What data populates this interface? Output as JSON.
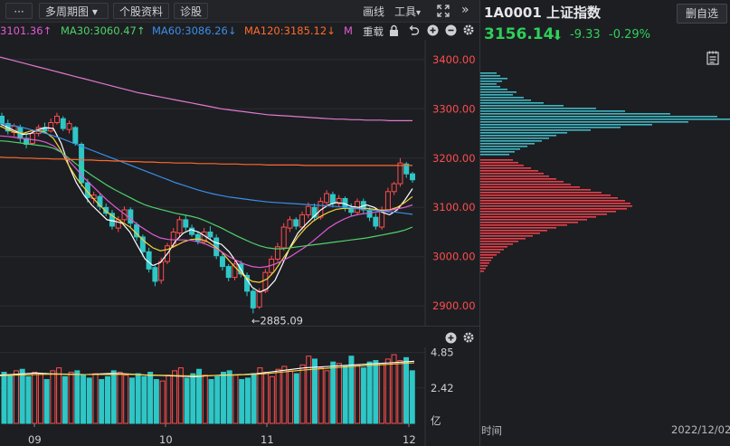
{
  "toolbar": {
    "multi_period": "多周期图",
    "stock_info": "个股资料",
    "diagnose": "诊股",
    "draw_line": "画线",
    "tools": "工具",
    "tools_caret": "▾",
    "multi_caret": "▾"
  },
  "ma_row": {
    "ma_first": "3101.36↑",
    "ma30": "MA30:3060.47↑",
    "ma60": "MA60:3086.26↓",
    "ma120": "MA120:3185.12↓",
    "ma_last": "M",
    "reweight": "重载",
    "colors": {
      "ma_first": "#e05bd3",
      "ma30": "#4ed36a",
      "ma60": "#3a8ee8",
      "ma120": "#ff6a2a",
      "ma_last": "#e05bd3"
    }
  },
  "chart_data": [
    {
      "type": "candlestick",
      "y_axis_labels": [
        "3400.00",
        "3300.00",
        "3200.00",
        "3100.00",
        "3000.00",
        "2900.00"
      ],
      "y_axis_values": [
        3400,
        3300,
        3200,
        3100,
        3000,
        2900
      ],
      "ylim": [
        2860,
        3440
      ],
      "annotation": "←2885.09",
      "annotation_value": 2885.09,
      "x_tick_labels": [
        "09",
        "10",
        "11",
        "12"
      ],
      "candles": [
        [
          3285,
          3270,
          3292,
          3262
        ],
        [
          3270,
          3255,
          3278,
          3248
        ],
        [
          3252,
          3265,
          3270,
          3244
        ],
        [
          3262,
          3240,
          3268,
          3232
        ],
        [
          3240,
          3228,
          3248,
          3220
        ],
        [
          3230,
          3250,
          3256,
          3226
        ],
        [
          3250,
          3262,
          3268,
          3244
        ],
        [
          3262,
          3255,
          3272,
          3250
        ],
        [
          3255,
          3272,
          3280,
          3252
        ],
        [
          3272,
          3285,
          3292,
          3268
        ],
        [
          3280,
          3260,
          3285,
          3255
        ],
        [
          3258,
          3270,
          3276,
          3250
        ],
        [
          3262,
          3230,
          3265,
          3225
        ],
        [
          3228,
          3150,
          3232,
          3142
        ],
        [
          3150,
          3120,
          3158,
          3110
        ],
        [
          3118,
          3125,
          3132,
          3108
        ],
        [
          3122,
          3102,
          3128,
          3095
        ],
        [
          3100,
          3088,
          3108,
          3082
        ],
        [
          3088,
          3062,
          3095,
          3055
        ],
        [
          3058,
          3075,
          3082,
          3050
        ],
        [
          3075,
          3095,
          3102,
          3070
        ],
        [
          3095,
          3068,
          3100,
          3060
        ],
        [
          3065,
          3040,
          3070,
          3032
        ],
        [
          3040,
          3010,
          3045,
          3000
        ],
        [
          3010,
          2975,
          3018,
          2968
        ],
        [
          2978,
          2950,
          2985,
          2940
        ],
        [
          2952,
          2990,
          2998,
          2945
        ],
        [
          2990,
          3022,
          3028,
          2985
        ],
        [
          3022,
          3050,
          3058,
          3018
        ],
        [
          3048,
          3075,
          3082,
          3040
        ],
        [
          3075,
          3060,
          3085,
          3052
        ],
        [
          3058,
          3045,
          3065,
          3040
        ],
        [
          3045,
          3032,
          3050,
          3025
        ],
        [
          3030,
          3050,
          3058,
          3025
        ],
        [
          3050,
          3040,
          3062,
          3035
        ],
        [
          3038,
          3002,
          3045,
          2995
        ],
        [
          3000,
          2980,
          3008,
          2972
        ],
        [
          2980,
          2958,
          2985,
          2950
        ],
        [
          2958,
          2985,
          2992,
          2952
        ],
        [
          2985,
          2965,
          2992,
          2958
        ],
        [
          2962,
          2930,
          2968,
          2920
        ],
        [
          2930,
          2896,
          2935,
          2885
        ],
        [
          2898,
          2930,
          2936,
          2894
        ],
        [
          2930,
          2968,
          2975,
          2926
        ],
        [
          2968,
          2995,
          3002,
          2962
        ],
        [
          2995,
          3020,
          3028,
          2990
        ],
        [
          3018,
          3060,
          3068,
          3012
        ],
        [
          3058,
          3075,
          3082,
          3050
        ],
        [
          3075,
          3062,
          3080,
          3055
        ],
        [
          3060,
          3085,
          3092,
          3055
        ],
        [
          3085,
          3102,
          3110,
          3078
        ],
        [
          3100,
          3080,
          3108,
          3072
        ],
        [
          3080,
          3112,
          3120,
          3075
        ],
        [
          3110,
          3128,
          3135,
          3102
        ],
        [
          3126,
          3108,
          3132,
          3100
        ],
        [
          3108,
          3118,
          3125,
          3102
        ],
        [
          3118,
          3100,
          3122,
          3092
        ],
        [
          3100,
          3090,
          3108,
          3082
        ],
        [
          3090,
          3112,
          3118,
          3085
        ],
        [
          3112,
          3095,
          3118,
          3088
        ],
        [
          3095,
          3080,
          3100,
          3072
        ],
        [
          3080,
          3062,
          3088,
          3055
        ],
        [
          3060,
          3095,
          3102,
          3055
        ],
        [
          3095,
          3132,
          3140,
          3090
        ],
        [
          3132,
          3148,
          3152,
          3125
        ],
        [
          3148,
          3190,
          3200,
          3142
        ],
        [
          3188,
          3168,
          3192,
          3160
        ],
        [
          3168,
          3156,
          3172,
          3150
        ]
      ],
      "ma_lines": {
        "ma5": {
          "color": "#ffffff",
          "from": 3270,
          "points": [
            3270,
            3262,
            3255,
            3248,
            3250,
            3258,
            3262,
            3260,
            3230,
            3185,
            3150,
            3125,
            3105,
            3090,
            3075,
            3072,
            3068,
            3050,
            3022,
            2995,
            2982,
            2988,
            3008,
            3032,
            3048,
            3055,
            3050,
            3040,
            3030,
            3025,
            3010,
            2988,
            2962,
            2938,
            2928,
            2935,
            2952,
            2985,
            3020,
            3048,
            3065,
            3080,
            3095,
            3105,
            3110,
            3108,
            3102,
            3100,
            3105,
            3100,
            3090,
            3085,
            3095,
            3115,
            3138
          ]
        },
        "ma10": {
          "color": "#f3d23a",
          "points": [
            3265,
            3258,
            3252,
            3250,
            3255,
            3256,
            3252,
            3240,
            3215,
            3185,
            3160,
            3140,
            3122,
            3105,
            3090,
            3080,
            3070,
            3060,
            3045,
            3030,
            3018,
            3012,
            3015,
            3022,
            3030,
            3035,
            3036,
            3032,
            3022,
            3010,
            2992,
            2975,
            2960,
            2950,
            2948,
            2955,
            2972,
            2995,
            3018,
            3040,
            3058,
            3072,
            3082,
            3090,
            3096,
            3098,
            3098,
            3098,
            3098,
            3096,
            3094,
            3095,
            3100,
            3110,
            3122
          ]
        },
        "ma20": {
          "color": "#e05bd3",
          "points": [
            3245,
            3244,
            3242,
            3240,
            3238,
            3236,
            3232,
            3225,
            3212,
            3195,
            3178,
            3160,
            3145,
            3130,
            3115,
            3102,
            3090,
            3078,
            3065,
            3055,
            3045,
            3038,
            3035,
            3034,
            3034,
            3033,
            3030,
            3025,
            3018,
            3010,
            3000,
            2992,
            2985,
            2980,
            2978,
            2980,
            2985,
            2992,
            3000,
            3010,
            3020,
            3032,
            3045,
            3058,
            3068,
            3076,
            3082,
            3086,
            3088,
            3090,
            3092,
            3094,
            3097,
            3100,
            3105
          ]
        },
        "ma30": {
          "color": "#4ed36a",
          "points": [
            3235,
            3234,
            3232,
            3230,
            3228,
            3226,
            3224,
            3220,
            3212,
            3200,
            3188,
            3176,
            3165,
            3155,
            3145,
            3136,
            3128,
            3120,
            3112,
            3105,
            3100,
            3096,
            3092,
            3088,
            3085,
            3082,
            3078,
            3072,
            3065,
            3058,
            3050,
            3042,
            3035,
            3028,
            3022,
            3018,
            3016,
            3016,
            3018,
            3020,
            3022,
            3024,
            3026,
            3028,
            3030,
            3032,
            3034,
            3036,
            3038,
            3041,
            3044,
            3047,
            3050,
            3054,
            3060
          ]
        },
        "ma60": {
          "color": "#3a8ee8",
          "points": [
            3270,
            3268,
            3265,
            3262,
            3258,
            3254,
            3250,
            3245,
            3240,
            3234,
            3228,
            3222,
            3216,
            3210,
            3204,
            3198,
            3192,
            3186,
            3180,
            3174,
            3168,
            3162,
            3156,
            3150,
            3145,
            3140,
            3135,
            3131,
            3127,
            3124,
            3121,
            3119,
            3117,
            3115,
            3113,
            3111,
            3110,
            3109,
            3108,
            3107,
            3106,
            3105,
            3104,
            3103,
            3102,
            3100,
            3099,
            3097,
            3095,
            3094,
            3092,
            3091,
            3090,
            3088,
            3086
          ]
        },
        "ma120": {
          "color": "#ff6a2a",
          "points": [
            3202,
            3201,
            3201,
            3200,
            3200,
            3199,
            3199,
            3198,
            3198,
            3197,
            3197,
            3196,
            3196,
            3195,
            3195,
            3194,
            3194,
            3193,
            3193,
            3192,
            3192,
            3191,
            3191,
            3190,
            3190,
            3190,
            3189,
            3189,
            3189,
            3188,
            3188,
            3188,
            3187,
            3187,
            3187,
            3186,
            3186,
            3186,
            3186,
            3186,
            3185,
            3185,
            3185,
            3185,
            3185,
            3185,
            3185,
            3185,
            3185,
            3185,
            3185,
            3185,
            3185,
            3185,
            3185
          ]
        },
        "ma250": {
          "color": "#e07ad0",
          "points": [
            3405,
            3401,
            3397,
            3393,
            3389,
            3385,
            3381,
            3377,
            3373,
            3369,
            3365,
            3361,
            3357,
            3353,
            3349,
            3345,
            3341,
            3337,
            3333,
            3330,
            3327,
            3324,
            3321,
            3318,
            3315,
            3312,
            3309,
            3306,
            3303,
            3300,
            3298,
            3296,
            3294,
            3292,
            3290,
            3288,
            3287,
            3286,
            3285,
            3284,
            3283,
            3282,
            3281,
            3280,
            3279,
            3279,
            3278,
            3278,
            3277,
            3277,
            3277,
            3276,
            3276,
            3276,
            3276
          ]
        }
      }
    },
    {
      "type": "bar",
      "title": "volume",
      "y_axis_labels": [
        "4.85",
        "2.42"
      ],
      "y_axis_values": [
        4.85,
        2.42
      ],
      "unit_label": "亿",
      "ylim": [
        0,
        5.2
      ],
      "x_tick_labels": [
        "09",
        "10",
        "11",
        "12"
      ],
      "values": [
        3.5,
        3.3,
        3.6,
        3.7,
        3.2,
        3.5,
        3.4,
        3.0,
        3.6,
        3.8,
        3.2,
        3.5,
        3.6,
        3.3,
        3.1,
        3.4,
        3.0,
        3.2,
        3.6,
        3.5,
        3.3,
        3.1,
        3.4,
        3.2,
        3.5,
        3.0,
        2.9,
        3.3,
        3.6,
        3.8,
        3.1,
        3.4,
        3.7,
        3.3,
        3.0,
        3.2,
        3.5,
        3.6,
        3.3,
        3.0,
        3.1,
        3.4,
        3.8,
        3.5,
        3.2,
        3.7,
        3.9,
        3.6,
        3.4,
        4.0,
        4.6,
        4.4,
        3.8,
        3.6,
        4.2,
        4.1,
        3.9,
        4.6,
        4.0,
        3.8,
        4.2,
        4.3,
        4.1,
        4.4,
        4.7,
        4.3,
        4.5,
        3.6
      ],
      "ma_lines": {
        "ma5": {
          "color": "#ffffff",
          "points": [
            3.3,
            3.35,
            3.4,
            3.45,
            3.4,
            3.38,
            3.36,
            3.34,
            3.38,
            3.42,
            3.4,
            3.36,
            3.3,
            3.28,
            3.25,
            3.22,
            3.2,
            3.25,
            3.3,
            3.32,
            3.35,
            3.4,
            3.5,
            3.6,
            3.7,
            3.8,
            3.85,
            3.9,
            3.95,
            4.0,
            4.05,
            4.1,
            4.15,
            4.2,
            4.25
          ]
        },
        "ma10": {
          "color": "#f3d23a",
          "points": [
            3.25,
            3.3,
            3.32,
            3.35,
            3.36,
            3.36,
            3.35,
            3.34,
            3.34,
            3.35,
            3.36,
            3.35,
            3.32,
            3.3,
            3.28,
            3.26,
            3.25,
            3.26,
            3.28,
            3.3,
            3.33,
            3.36,
            3.42,
            3.5,
            3.58,
            3.66,
            3.72,
            3.78,
            3.84,
            3.9,
            3.95,
            4.0,
            4.05,
            4.1,
            4.15
          ]
        }
      }
    },
    {
      "type": "horizontal-bar",
      "title": "price distribution",
      "x_label": "时间",
      "date_label": "2022/12/02",
      "rows_upper_cyan": [
        18,
        22,
        30,
        24,
        18,
        22,
        30,
        40,
        36,
        48,
        56,
        70,
        92,
        128,
        160,
        210,
        262,
        277,
        230,
        190,
        155,
        122,
        96,
        84,
        76,
        68,
        60,
        52,
        44,
        38,
        32
      ],
      "rows_lower_red": [
        36,
        42,
        48,
        56,
        64,
        70,
        76,
        84,
        92,
        100,
        110,
        122,
        134,
        144,
        152,
        160,
        166,
        168,
        162,
        150,
        140,
        128,
        118,
        108,
        96,
        84,
        74,
        66,
        58,
        50,
        42,
        36,
        30,
        26,
        22,
        18,
        14,
        12,
        10,
        8,
        6,
        4
      ]
    }
  ],
  "right_panel": {
    "code": "1A0001 上证指数",
    "delete_button": "删自选",
    "price": "3156.14",
    "price_arrow": "⬇",
    "change": "-9.33",
    "change_pct": "-0.29%"
  }
}
